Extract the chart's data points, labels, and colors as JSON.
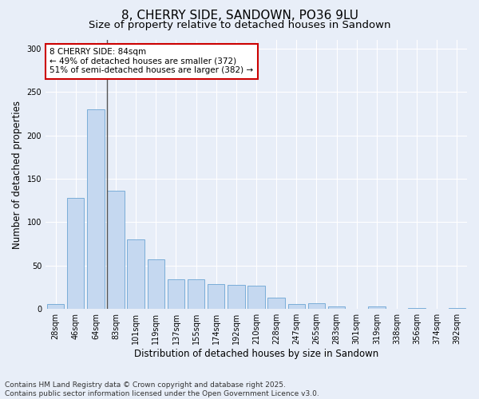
{
  "title": "8, CHERRY SIDE, SANDOWN, PO36 9LU",
  "subtitle": "Size of property relative to detached houses in Sandown",
  "xlabel": "Distribution of detached houses by size in Sandown",
  "ylabel": "Number of detached properties",
  "categories": [
    "28sqm",
    "46sqm",
    "64sqm",
    "83sqm",
    "101sqm",
    "119sqm",
    "137sqm",
    "155sqm",
    "174sqm",
    "192sqm",
    "210sqm",
    "228sqm",
    "247sqm",
    "265sqm",
    "283sqm",
    "301sqm",
    "319sqm",
    "338sqm",
    "356sqm",
    "374sqm",
    "392sqm"
  ],
  "values": [
    6,
    128,
    230,
    136,
    80,
    57,
    34,
    34,
    29,
    28,
    27,
    13,
    6,
    7,
    3,
    0,
    3,
    0,
    1,
    0,
    1
  ],
  "bar_color": "#c5d8f0",
  "bar_edge_color": "#7aadd8",
  "highlight_line_index": 3,
  "annotation_line1": "8 CHERRY SIDE: 84sqm",
  "annotation_line2": "← 49% of detached houses are smaller (372)",
  "annotation_line3": "51% of semi-detached houses are larger (382) →",
  "annotation_box_facecolor": "#ffffff",
  "annotation_box_edgecolor": "#cc0000",
  "ylim": [
    0,
    310
  ],
  "yticks": [
    0,
    50,
    100,
    150,
    200,
    250,
    300
  ],
  "background_color": "#e8eef8",
  "grid_color": "#ffffff",
  "footer": "Contains HM Land Registry data © Crown copyright and database right 2025.\nContains public sector information licensed under the Open Government Licence v3.0.",
  "title_fontsize": 11,
  "subtitle_fontsize": 9.5,
  "xlabel_fontsize": 8.5,
  "ylabel_fontsize": 8.5,
  "tick_fontsize": 7,
  "annotation_fontsize": 7.5,
  "footer_fontsize": 6.5
}
